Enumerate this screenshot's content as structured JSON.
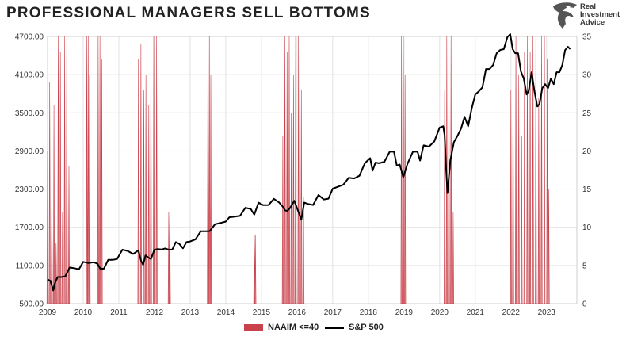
{
  "title": "PROFESSIONAL MANAGERS SELL BOTTOMS",
  "brand": {
    "line1": "Real",
    "line2": "Investment",
    "line3": "Advice",
    "icon": "eagle-logo-icon"
  },
  "colors": {
    "naaim": "#c9414b",
    "sp500": "#000000",
    "grid": "#e2e2e2"
  },
  "chart_data": {
    "type": "line",
    "title": "PROFESSIONAL MANAGERS SELL BOTTOMS",
    "x_ticks": [
      "2009",
      "2010",
      "2011",
      "2012",
      "2013",
      "2014",
      "2015",
      "2016",
      "2017",
      "2018",
      "2019",
      "2020",
      "2021",
      "2022",
      "2023"
    ],
    "x_range": [
      2009.0,
      2023.85
    ],
    "y_left": {
      "range": [
        500,
        4700
      ],
      "ticks": [
        "500.00",
        "1100.00",
        "1700.00",
        "2300.00",
        "2900.00",
        "3500.00",
        "4100.00",
        "4700.00"
      ],
      "tick_values": [
        500,
        1100,
        1700,
        2300,
        2900,
        3500,
        4100,
        4700
      ]
    },
    "y_right": {
      "range": [
        0,
        35
      ],
      "ticks": [
        "0",
        "5",
        "10",
        "15",
        "20",
        "25",
        "30",
        "35"
      ],
      "tick_values": [
        0,
        5,
        10,
        15,
        20,
        25,
        30,
        35
      ]
    },
    "grid": true,
    "legend": "bottom-center",
    "series": [
      {
        "name": "NAAIM <=40",
        "type": "area",
        "axis": "right",
        "episodes": [
          {
            "x": [
              2009.0,
              2009.06,
              2009.12,
              2009.18,
              2009.24,
              2009.3,
              2009.36,
              2009.42,
              2009.48,
              2009.54,
              2009.6
            ],
            "y": [
              20,
              29,
              15,
              26,
              8,
              35,
              33,
              12,
              35,
              35,
              18
            ]
          },
          {
            "x": [
              2010.1,
              2010.14,
              2010.18
            ],
            "y": [
              35,
              35,
              30
            ]
          },
          {
            "x": [
              2010.42,
              2010.47,
              2010.52
            ],
            "y": [
              35,
              35,
              32
            ]
          },
          {
            "x": [
              2011.55,
              2011.62,
              2011.7,
              2011.76,
              2011.84,
              2011.9,
              2011.98,
              2012.06
            ],
            "y": [
              32,
              34,
              28,
              30,
              26,
              35,
              35,
              35
            ]
          },
          {
            "x": [
              2012.4,
              2012.43
            ],
            "y": [
              12,
              12
            ]
          },
          {
            "x": [
              2013.5,
              2013.54,
              2013.58
            ],
            "y": [
              35,
              35,
              30
            ]
          },
          {
            "x": [
              2014.8,
              2014.83
            ],
            "y": [
              9,
              9
            ]
          },
          {
            "x": [
              2015.6,
              2015.66,
              2015.72,
              2015.78,
              2015.84,
              2015.9,
              2015.96,
              2016.04,
              2016.12,
              2016.18
            ],
            "y": [
              22,
              35,
              33,
              35,
              25,
              30,
              35,
              35,
              28,
              14
            ]
          },
          {
            "x": [
              2018.93,
              2018.98,
              2019.03
            ],
            "y": [
              35,
              35,
              30
            ]
          },
          {
            "x": [
              2020.14,
              2020.2,
              2020.26,
              2020.32,
              2020.38
            ],
            "y": [
              28,
              35,
              35,
              35,
              12
            ]
          },
          {
            "x": [
              2022.0,
              2022.06,
              2022.14,
              2022.22,
              2022.3,
              2022.38,
              2022.46,
              2022.54,
              2022.62,
              2022.7,
              2022.78,
              2022.86,
              2022.94,
              2023.02,
              2023.06
            ],
            "y": [
              28,
              32,
              35,
              30,
              22,
              33,
              35,
              33,
              35,
              35,
              27,
              35,
              35,
              32,
              15
            ]
          }
        ]
      },
      {
        "name": "S&P 500",
        "type": "line",
        "axis": "left",
        "x": [
          2009.0,
          2009.08,
          2009.16,
          2009.2,
          2009.28,
          2009.38,
          2009.5,
          2009.62,
          2009.75,
          2009.88,
          2010.0,
          2010.15,
          2010.3,
          2010.4,
          2010.48,
          2010.58,
          2010.7,
          2010.82,
          2010.95,
          2011.1,
          2011.25,
          2011.4,
          2011.55,
          2011.62,
          2011.68,
          2011.75,
          2011.82,
          2011.9,
          2012.0,
          2012.1,
          2012.2,
          2012.3,
          2012.4,
          2012.5,
          2012.6,
          2012.7,
          2012.8,
          2012.9,
          2013.0,
          2013.15,
          2013.3,
          2013.45,
          2013.55,
          2013.7,
          2013.85,
          2014.0,
          2014.1,
          2014.25,
          2014.4,
          2014.55,
          2014.7,
          2014.8,
          2014.92,
          2015.05,
          2015.2,
          2015.35,
          2015.5,
          2015.62,
          2015.66,
          2015.72,
          2015.8,
          2015.92,
          2016.05,
          2016.12,
          2016.2,
          2016.3,
          2016.45,
          2016.6,
          2016.75,
          2016.88,
          2017.0,
          2017.15,
          2017.3,
          2017.45,
          2017.6,
          2017.75,
          2017.9,
          2018.05,
          2018.12,
          2018.2,
          2018.3,
          2018.45,
          2018.6,
          2018.72,
          2018.8,
          2018.88,
          2018.98,
          2019.1,
          2019.25,
          2019.38,
          2019.45,
          2019.55,
          2019.7,
          2019.85,
          2020.0,
          2020.1,
          2020.14,
          2020.18,
          2020.22,
          2020.3,
          2020.4,
          2020.5,
          2020.6,
          2020.7,
          2020.8,
          2020.9,
          2021.0,
          2021.1,
          2021.2,
          2021.3,
          2021.4,
          2021.5,
          2021.6,
          2021.7,
          2021.8,
          2021.9,
          2021.98,
          2022.05,
          2022.12,
          2022.2,
          2022.28,
          2022.36,
          2022.44,
          2022.5,
          2022.58,
          2022.66,
          2022.74,
          2022.8,
          2022.88,
          2022.96,
          2023.04,
          2023.12,
          2023.2,
          2023.28,
          2023.36,
          2023.44,
          2023.52,
          2023.6,
          2023.66
        ],
        "y": [
          930,
          820,
          720,
          860,
          880,
          930,
          980,
          1030,
          1070,
          1090,
          1120,
          1150,
          1200,
          1090,
          1060,
          1100,
          1150,
          1200,
          1250,
          1310,
          1340,
          1330,
          1300,
          1190,
          1160,
          1220,
          1240,
          1250,
          1310,
          1370,
          1400,
          1330,
          1360,
          1400,
          1430,
          1450,
          1420,
          1430,
          1490,
          1560,
          1600,
          1650,
          1690,
          1710,
          1780,
          1840,
          1820,
          1880,
          1930,
          1970,
          2000,
          1950,
          2050,
          2060,
          2100,
          2110,
          2100,
          2060,
          1930,
          1970,
          2050,
          2080,
          1940,
          1870,
          2050,
          2080,
          2100,
          2170,
          2150,
          2200,
          2270,
          2350,
          2420,
          2440,
          2480,
          2560,
          2670,
          2800,
          2640,
          2680,
          2720,
          2780,
          2850,
          2900,
          2720,
          2650,
          2500,
          2750,
          2850,
          2900,
          2800,
          2950,
          2980,
          3100,
          3230,
          3300,
          3200,
          2600,
          2250,
          2800,
          3000,
          3150,
          3300,
          3400,
          3300,
          3620,
          3750,
          3850,
          3950,
          4150,
          4200,
          4300,
          4400,
          4500,
          4550,
          4650,
          4750,
          4550,
          4400,
          4450,
          4200,
          4000,
          3800,
          3900,
          4100,
          3850,
          3650,
          3600,
          3900,
          4000,
          3850,
          4050,
          4000,
          4100,
          4150,
          4300,
          4450,
          4550,
          4550
        ]
      }
    ]
  }
}
